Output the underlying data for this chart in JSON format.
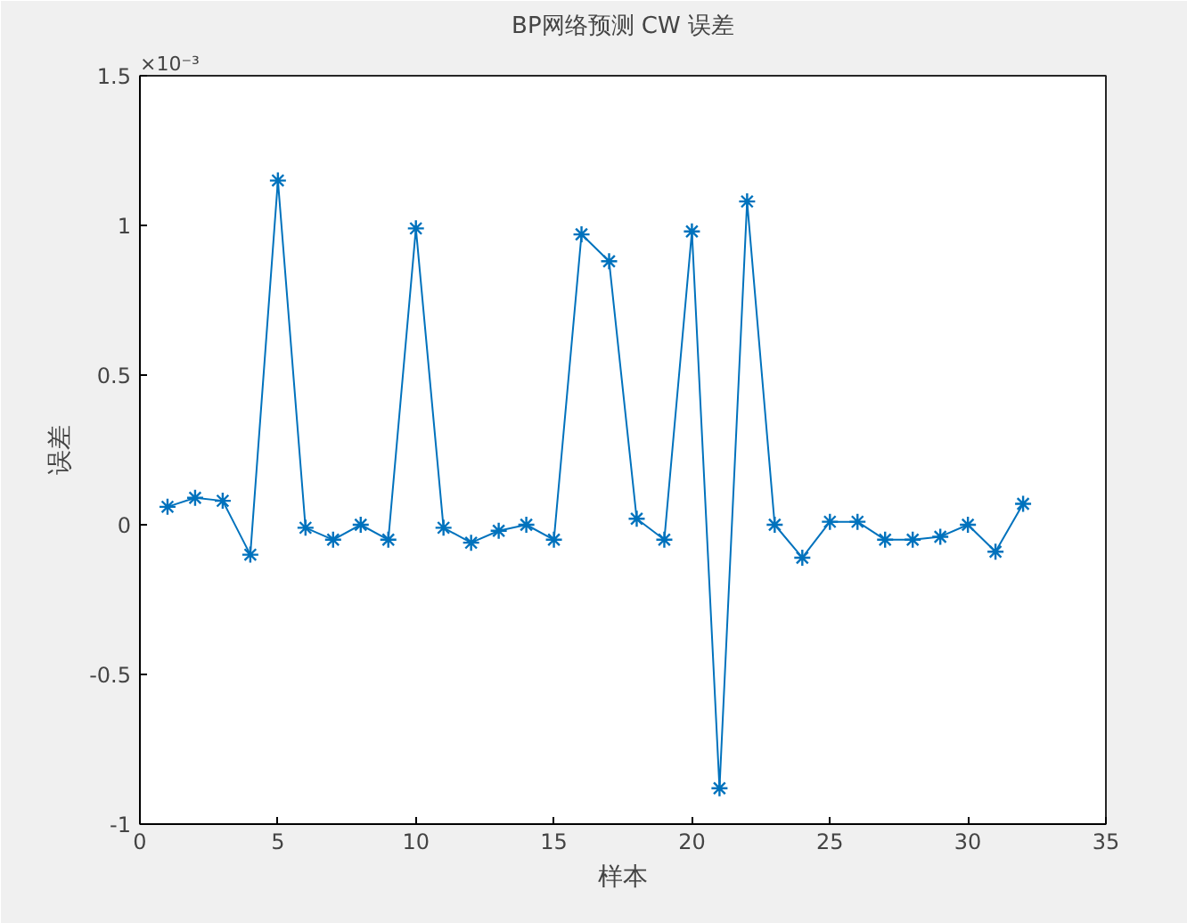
{
  "chart_data": {
    "type": "line",
    "title": "BP网络预测 CW 误差",
    "xlabel": "样本",
    "ylabel": "误差",
    "annotations": [
      "×10⁻³"
    ],
    "x": [
      1,
      2,
      3,
      4,
      5,
      6,
      7,
      8,
      9,
      10,
      11,
      12,
      13,
      14,
      15,
      16,
      17,
      18,
      19,
      20,
      21,
      22,
      23,
      24,
      25,
      26,
      27,
      28,
      29,
      30,
      31,
      32
    ],
    "series": [
      {
        "color": "#0072bd",
        "values": [
          0.06,
          0.09,
          0.08,
          -0.1,
          1.15,
          -0.01,
          -0.05,
          0.0,
          -0.05,
          0.99,
          -0.01,
          -0.06,
          -0.02,
          0.0,
          -0.05,
          0.97,
          0.88,
          0.02,
          -0.05,
          0.98,
          -0.88,
          1.08,
          0.0,
          -0.11,
          0.01,
          0.01,
          -0.05,
          -0.05,
          -0.04,
          0.0,
          -0.09,
          0.07
        ]
      }
    ],
    "xlim": [
      0,
      35
    ],
    "xticks": [
      0,
      5,
      10,
      15,
      20,
      25,
      30,
      35
    ],
    "ylim": [
      -1,
      1.5
    ],
    "yticks": [
      -1,
      -0.5,
      0,
      0.5,
      1,
      1.5
    ],
    "marker": "cross",
    "line_style": "solid",
    "grid": false
  }
}
